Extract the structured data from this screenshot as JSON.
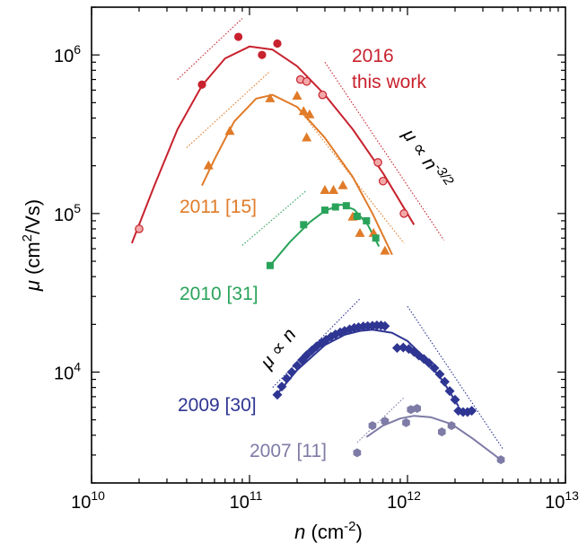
{
  "chart_data": {
    "type": "scatter",
    "xscale": "log",
    "yscale": "log",
    "xlim": [
      10000000000.0,
      10000000000000.0
    ],
    "ylim": [
      2000,
      2000000
    ],
    "xlabel": {
      "sym": "n",
      "unit": " (cm",
      "exp": "-2",
      "close": ")"
    },
    "ylabel": {
      "sym": "μ",
      "unit": " (cm",
      "exp": "2",
      "rest": "/Vs)"
    },
    "xticks": [
      {
        "value": 10000000000.0,
        "base": "10",
        "exp": "10"
      },
      {
        "value": 100000000000.0,
        "base": "10",
        "exp": "11"
      },
      {
        "value": 1000000000000.0,
        "base": "10",
        "exp": "12"
      },
      {
        "value": 10000000000000.0,
        "base": "10",
        "exp": "13"
      }
    ],
    "yticks": [
      {
        "value": 10000,
        "base": "10",
        "exp": "4"
      },
      {
        "value": 100000,
        "base": "10",
        "exp": "5"
      },
      {
        "value": 1000000,
        "base": "10",
        "exp": "6"
      }
    ],
    "series": [
      {
        "name": "2016 this work",
        "label_lines": [
          "2016",
          "this work"
        ],
        "color": "#c8222e",
        "light_fill": "#f2a8a8",
        "points": [
          {
            "x": 50000000000.0,
            "y": 650000,
            "marker": "circle-solid"
          },
          {
            "x": 85000000000.0,
            "y": 1300000,
            "marker": "circle-solid"
          },
          {
            "x": 120000000000.0,
            "y": 1000000,
            "marker": "circle-solid"
          },
          {
            "x": 150000000000.0,
            "y": 1180000,
            "marker": "circle-solid"
          },
          {
            "x": 20000000000.0,
            "y": 80000,
            "marker": "circle-light"
          },
          {
            "x": 210000000000.0,
            "y": 700000,
            "marker": "circle-light"
          },
          {
            "x": 230000000000.0,
            "y": 680000,
            "marker": "circle-light"
          },
          {
            "x": 290000000000.0,
            "y": 560000,
            "marker": "circle-light"
          },
          {
            "x": 650000000000.0,
            "y": 210000,
            "marker": "circle-light"
          },
          {
            "x": 700000000000.0,
            "y": 160000,
            "marker": "circle-light"
          },
          {
            "x": 950000000000.0,
            "y": 100000,
            "marker": "circle-light"
          }
        ],
        "fit": [
          {
            "x": 18000000000.0,
            "y": 65000
          },
          {
            "x": 25000000000.0,
            "y": 150000
          },
          {
            "x": 35000000000.0,
            "y": 340000
          },
          {
            "x": 50000000000.0,
            "y": 640000
          },
          {
            "x": 70000000000.0,
            "y": 950000
          },
          {
            "x": 100000000000.0,
            "y": 1130000
          },
          {
            "x": 140000000000.0,
            "y": 1080000
          },
          {
            "x": 200000000000.0,
            "y": 850000
          },
          {
            "x": 300000000000.0,
            "y": 560000
          },
          {
            "x": 450000000000.0,
            "y": 340000
          },
          {
            "x": 700000000000.0,
            "y": 180000
          },
          {
            "x": 1100000000000.0,
            "y": 85000
          }
        ],
        "guides": [
          {
            "x1": 35000000000.0,
            "y1": 700000,
            "x2": 90000000000.0,
            "y2": 1700000
          },
          {
            "x1": 300000000000.0,
            "y1": 900000,
            "x2": 1700000000000.0,
            "y2": 68000
          }
        ]
      },
      {
        "name": "2011 [15]",
        "color": "#e07b28",
        "points": [
          {
            "x": 55000000000.0,
            "y": 200000,
            "marker": "triangle"
          },
          {
            "x": 75000000000.0,
            "y": 330000,
            "marker": "triangle"
          },
          {
            "x": 135000000000.0,
            "y": 530000,
            "marker": "triangle"
          },
          {
            "x": 200000000000.0,
            "y": 550000,
            "marker": "triangle"
          },
          {
            "x": 220000000000.0,
            "y": 440000,
            "marker": "triangle"
          },
          {
            "x": 240000000000.0,
            "y": 420000,
            "marker": "triangle"
          },
          {
            "x": 230000000000.0,
            "y": 300000,
            "marker": "triangle"
          },
          {
            "x": 300000000000.0,
            "y": 140000,
            "marker": "triangle"
          },
          {
            "x": 340000000000.0,
            "y": 140000,
            "marker": "triangle"
          },
          {
            "x": 390000000000.0,
            "y": 150000,
            "marker": "triangle"
          },
          {
            "x": 450000000000.0,
            "y": 95000,
            "marker": "triangle"
          },
          {
            "x": 500000000000.0,
            "y": 75000,
            "marker": "triangle"
          },
          {
            "x": 610000000000.0,
            "y": 75000,
            "marker": "triangle"
          },
          {
            "x": 720000000000.0,
            "y": 58000,
            "marker": "triangle"
          }
        ],
        "fit": [
          {
            "x": 50000000000.0,
            "y": 150000
          },
          {
            "x": 60000000000.0,
            "y": 220000
          },
          {
            "x": 80000000000.0,
            "y": 380000
          },
          {
            "x": 110000000000.0,
            "y": 530000
          },
          {
            "x": 140000000000.0,
            "y": 560000
          },
          {
            "x": 200000000000.0,
            "y": 470000
          },
          {
            "x": 300000000000.0,
            "y": 300000
          },
          {
            "x": 450000000000.0,
            "y": 170000
          },
          {
            "x": 600000000000.0,
            "y": 100000
          },
          {
            "x": 800000000000.0,
            "y": 55000
          }
        ],
        "guides": [
          {
            "x1": 40000000000.0,
            "y1": 260000,
            "x2": 135000000000.0,
            "y2": 790000
          },
          {
            "x1": 200000000000.0,
            "y1": 470000,
            "x2": 950000000000.0,
            "y2": 65000
          }
        ]
      },
      {
        "name": "2010 [31]",
        "color": "#2aa35a",
        "points": [
          {
            "x": 135000000000.0,
            "y": 47000,
            "marker": "square"
          },
          {
            "x": 220000000000.0,
            "y": 85000,
            "marker": "square"
          },
          {
            "x": 300000000000.0,
            "y": 105000,
            "marker": "square"
          },
          {
            "x": 350000000000.0,
            "y": 110000,
            "marker": "square"
          },
          {
            "x": 410000000000.0,
            "y": 112000,
            "marker": "square"
          },
          {
            "x": 480000000000.0,
            "y": 96000,
            "marker": "square"
          },
          {
            "x": 550000000000.0,
            "y": 90000,
            "marker": "square"
          },
          {
            "x": 630000000000.0,
            "y": 70000,
            "marker": "square"
          }
        ],
        "fit": [
          {
            "x": 135000000000.0,
            "y": 47000
          },
          {
            "x": 180000000000.0,
            "y": 66000
          },
          {
            "x": 240000000000.0,
            "y": 88000
          },
          {
            "x": 300000000000.0,
            "y": 104000
          },
          {
            "x": 380000000000.0,
            "y": 114000
          },
          {
            "x": 460000000000.0,
            "y": 106000
          },
          {
            "x": 560000000000.0,
            "y": 85000
          },
          {
            "x": 660000000000.0,
            "y": 62000
          }
        ],
        "guides": [
          {
            "x1": 90000000000.0,
            "y1": 63000,
            "x2": 230000000000.0,
            "y2": 140000
          }
        ]
      },
      {
        "name": "2009 [30]",
        "color": "#2e3592",
        "points": [
          {
            "x": 150000000000.0,
            "y": 7200,
            "marker": "diamond"
          },
          {
            "x": 160000000000.0,
            "y": 8100,
            "marker": "diamond"
          },
          {
            "x": 172000000000.0,
            "y": 9100,
            "marker": "diamond"
          },
          {
            "x": 185000000000.0,
            "y": 10000,
            "marker": "diamond"
          },
          {
            "x": 200000000000.0,
            "y": 11000,
            "marker": "diamond"
          },
          {
            "x": 215000000000.0,
            "y": 11900,
            "marker": "diamond"
          },
          {
            "x": 230000000000.0,
            "y": 12800,
            "marker": "diamond"
          },
          {
            "x": 248000000000.0,
            "y": 13700,
            "marker": "diamond"
          },
          {
            "x": 265000000000.0,
            "y": 14500,
            "marker": "diamond"
          },
          {
            "x": 285000000000.0,
            "y": 15300,
            "marker": "diamond"
          },
          {
            "x": 305000000000.0,
            "y": 16000,
            "marker": "diamond"
          },
          {
            "x": 328000000000.0,
            "y": 16700,
            "marker": "diamond"
          },
          {
            "x": 350000000000.0,
            "y": 17300,
            "marker": "diamond"
          },
          {
            "x": 375000000000.0,
            "y": 17800,
            "marker": "diamond"
          },
          {
            "x": 400000000000.0,
            "y": 18200,
            "marker": "diamond"
          },
          {
            "x": 430000000000.0,
            "y": 18600,
            "marker": "diamond"
          },
          {
            "x": 460000000000.0,
            "y": 19000,
            "marker": "diamond"
          },
          {
            "x": 490000000000.0,
            "y": 19200,
            "marker": "diamond"
          },
          {
            "x": 525000000000.0,
            "y": 19400,
            "marker": "diamond"
          },
          {
            "x": 560000000000.0,
            "y": 19500,
            "marker": "diamond"
          },
          {
            "x": 600000000000.0,
            "y": 19600,
            "marker": "diamond"
          },
          {
            "x": 640000000000.0,
            "y": 19700,
            "marker": "diamond"
          },
          {
            "x": 680000000000.0,
            "y": 19700,
            "marker": "diamond"
          },
          {
            "x": 720000000000.0,
            "y": 19500,
            "marker": "diamond"
          },
          {
            "x": 860000000000.0,
            "y": 14200,
            "marker": "diamond"
          },
          {
            "x": 940000000000.0,
            "y": 14300,
            "marker": "diamond"
          },
          {
            "x": 1020000000000.0,
            "y": 14000,
            "marker": "diamond"
          },
          {
            "x": 1100000000000.0,
            "y": 13400,
            "marker": "diamond"
          },
          {
            "x": 1180000000000.0,
            "y": 12700,
            "marker": "diamond"
          },
          {
            "x": 1270000000000.0,
            "y": 12100,
            "marker": "diamond"
          },
          {
            "x": 1370000000000.0,
            "y": 11400,
            "marker": "diamond"
          },
          {
            "x": 1480000000000.0,
            "y": 10600,
            "marker": "diamond"
          },
          {
            "x": 1600000000000.0,
            "y": 9700,
            "marker": "diamond"
          },
          {
            "x": 1720000000000.0,
            "y": 8700,
            "marker": "diamond"
          },
          {
            "x": 1850000000000.0,
            "y": 7600,
            "marker": "diamond"
          },
          {
            "x": 2000000000000.0,
            "y": 6700,
            "marker": "diamond"
          },
          {
            "x": 2100000000000.0,
            "y": 5700,
            "marker": "diamond"
          },
          {
            "x": 2250000000000.0,
            "y": 5600,
            "marker": "diamond"
          },
          {
            "x": 2400000000000.0,
            "y": 5600,
            "marker": "diamond"
          },
          {
            "x": 2550000000000.0,
            "y": 5700,
            "marker": "diamond"
          }
        ],
        "fit": [
          {
            "x": 150000000000.0,
            "y": 7300
          },
          {
            "x": 200000000000.0,
            "y": 10300
          },
          {
            "x": 300000000000.0,
            "y": 14800
          },
          {
            "x": 400000000000.0,
            "y": 17200
          },
          {
            "x": 500000000000.0,
            "y": 18200
          },
          {
            "x": 600000000000.0,
            "y": 18500
          },
          {
            "x": 800000000000.0,
            "y": 17700
          },
          {
            "x": 1000000000000.0,
            "y": 15700
          },
          {
            "x": 1300000000000.0,
            "y": 12200
          },
          {
            "x": 1700000000000.0,
            "y": 8600
          },
          {
            "x": 2100000000000.0,
            "y": 6100
          }
        ],
        "guides": [
          {
            "x1": 140000000000.0,
            "y1": 8000,
            "x2": 500000000000.0,
            "y2": 29000
          },
          {
            "x1": 1000000000000.0,
            "y1": 26000,
            "x2": 4000000000000.0,
            "y2": 3300
          }
        ]
      },
      {
        "name": "2007 [11]",
        "color": "#7e7ba6",
        "points": [
          {
            "x": 480000000000.0,
            "y": 3100,
            "marker": "hexagon"
          },
          {
            "x": 600000000000.0,
            "y": 4600,
            "marker": "hexagon"
          },
          {
            "x": 720000000000.0,
            "y": 4900,
            "marker": "hexagon"
          },
          {
            "x": 980000000000.0,
            "y": 4800,
            "marker": "hexagon"
          },
          {
            "x": 1050000000000.0,
            "y": 5800,
            "marker": "hexagon"
          },
          {
            "x": 1150000000000.0,
            "y": 5900,
            "marker": "hexagon"
          },
          {
            "x": 1650000000000.0,
            "y": 4200,
            "marker": "hexagon"
          },
          {
            "x": 1900000000000.0,
            "y": 4600,
            "marker": "hexagon"
          },
          {
            "x": 3900000000000.0,
            "y": 2800,
            "marker": "hexagon"
          }
        ],
        "fit": [
          {
            "x": 550000000000.0,
            "y": 3900
          },
          {
            "x": 700000000000.0,
            "y": 4600
          },
          {
            "x": 900000000000.0,
            "y": 5100
          },
          {
            "x": 1100000000000.0,
            "y": 5300
          },
          {
            "x": 1400000000000.0,
            "y": 5200
          },
          {
            "x": 1900000000000.0,
            "y": 4700
          },
          {
            "x": 2600000000000.0,
            "y": 3800
          },
          {
            "x": 3900000000000.0,
            "y": 2800
          }
        ],
        "guides": [
          {
            "x1": 480000000000.0,
            "y1": 3600,
            "x2": 950000000000.0,
            "y2": 6900
          }
        ]
      }
    ],
    "annotations": [
      {
        "id": "slope-n",
        "prefix": "μ ∝ ",
        "var": "n",
        "exp": ""
      },
      {
        "id": "slope-n32",
        "prefix": "μ ∝ ",
        "var": "n",
        "exp": "-3/2"
      }
    ]
  }
}
